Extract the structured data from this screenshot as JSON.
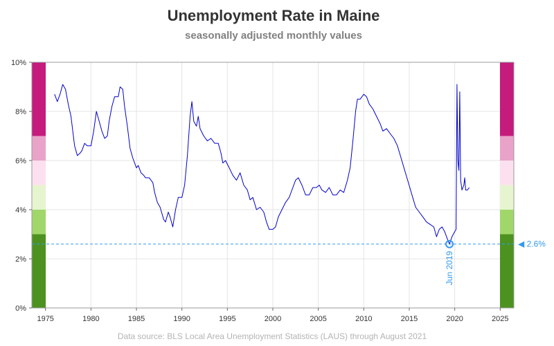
{
  "chart_data": {
    "type": "line",
    "title": "Unemployment Rate in Maine",
    "subtitle": "seasonally adjusted monthly values",
    "caption": "Data source: BLS Local Area Unemployment Statistics (LAUS) through August 2021",
    "xlim": [
      1973.5,
      2026.5
    ],
    "ylim": [
      0,
      10
    ],
    "x_ticks": [
      1975,
      1980,
      1985,
      1990,
      1995,
      2000,
      2005,
      2010,
      2015,
      2020,
      2025
    ],
    "x_tick_labels": [
      "1975",
      "1980",
      "1985",
      "1990",
      "1995",
      "2000",
      "2005",
      "2010",
      "2015",
      "2020",
      "2025"
    ],
    "y_ticks": [
      0,
      2,
      4,
      6,
      8,
      10
    ],
    "y_tick_labels": [
      "0%",
      "2%",
      "4%",
      "6%",
      "8%",
      "10%"
    ],
    "grid": true,
    "line_color": "#0000cc",
    "series": [
      {
        "points": [
          [
            1976.0,
            8.7
          ],
          [
            1976.3,
            8.4
          ],
          [
            1976.6,
            8.7
          ],
          [
            1976.9,
            9.1
          ],
          [
            1977.2,
            8.9
          ],
          [
            1977.5,
            8.3
          ],
          [
            1977.8,
            7.8
          ],
          [
            1978.0,
            7.2
          ],
          [
            1978.2,
            6.6
          ],
          [
            1978.5,
            6.2
          ],
          [
            1978.8,
            6.3
          ],
          [
            1979.0,
            6.4
          ],
          [
            1979.3,
            6.7
          ],
          [
            1979.6,
            6.6
          ],
          [
            1980.0,
            6.6
          ],
          [
            1980.3,
            7.2
          ],
          [
            1980.6,
            8.0
          ],
          [
            1980.9,
            7.6
          ],
          [
            1981.2,
            7.2
          ],
          [
            1981.5,
            6.9
          ],
          [
            1981.8,
            7.0
          ],
          [
            1982.0,
            7.6
          ],
          [
            1982.3,
            8.2
          ],
          [
            1982.6,
            8.6
          ],
          [
            1983.0,
            8.6
          ],
          [
            1983.2,
            9.0
          ],
          [
            1983.5,
            8.9
          ],
          [
            1983.7,
            8.2
          ],
          [
            1984.0,
            7.4
          ],
          [
            1984.3,
            6.5
          ],
          [
            1984.6,
            6.1
          ],
          [
            1985.0,
            5.7
          ],
          [
            1985.2,
            5.8
          ],
          [
            1985.5,
            5.5
          ],
          [
            1985.8,
            5.4
          ],
          [
            1986.0,
            5.3
          ],
          [
            1986.4,
            5.3
          ],
          [
            1986.8,
            5.1
          ],
          [
            1987.0,
            4.7
          ],
          [
            1987.3,
            4.3
          ],
          [
            1987.6,
            4.1
          ],
          [
            1988.0,
            3.6
          ],
          [
            1988.2,
            3.5
          ],
          [
            1988.5,
            3.9
          ],
          [
            1988.7,
            3.7
          ],
          [
            1989.0,
            3.3
          ],
          [
            1989.3,
            4.0
          ],
          [
            1989.6,
            4.5
          ],
          [
            1990.0,
            4.5
          ],
          [
            1990.3,
            5.0
          ],
          [
            1990.6,
            6.2
          ],
          [
            1990.9,
            7.8
          ],
          [
            1991.1,
            8.4
          ],
          [
            1991.3,
            7.6
          ],
          [
            1991.6,
            7.4
          ],
          [
            1991.8,
            7.8
          ],
          [
            1992.0,
            7.3
          ],
          [
            1992.4,
            7.0
          ],
          [
            1992.8,
            6.8
          ],
          [
            1993.2,
            6.9
          ],
          [
            1993.6,
            6.7
          ],
          [
            1994.0,
            6.7
          ],
          [
            1994.3,
            6.3
          ],
          [
            1994.5,
            5.9
          ],
          [
            1994.8,
            6.0
          ],
          [
            1995.2,
            5.7
          ],
          [
            1995.6,
            5.4
          ],
          [
            1996.0,
            5.2
          ],
          [
            1996.4,
            5.5
          ],
          [
            1996.8,
            5.0
          ],
          [
            1997.2,
            4.8
          ],
          [
            1997.5,
            4.4
          ],
          [
            1997.8,
            4.5
          ],
          [
            1998.2,
            4.0
          ],
          [
            1998.6,
            4.1
          ],
          [
            1999.0,
            3.9
          ],
          [
            1999.3,
            3.5
          ],
          [
            1999.6,
            3.2
          ],
          [
            2000.0,
            3.2
          ],
          [
            2000.3,
            3.3
          ],
          [
            2000.6,
            3.7
          ],
          [
            2001.0,
            4.0
          ],
          [
            2001.4,
            4.3
          ],
          [
            2001.8,
            4.5
          ],
          [
            2002.2,
            4.9
          ],
          [
            2002.5,
            5.2
          ],
          [
            2002.8,
            5.3
          ],
          [
            2003.2,
            5.0
          ],
          [
            2003.6,
            4.6
          ],
          [
            2004.0,
            4.6
          ],
          [
            2004.4,
            4.9
          ],
          [
            2004.8,
            4.9
          ],
          [
            2005.1,
            5.0
          ],
          [
            2005.4,
            4.8
          ],
          [
            2005.8,
            4.7
          ],
          [
            2006.2,
            4.9
          ],
          [
            2006.6,
            4.6
          ],
          [
            2007.0,
            4.6
          ],
          [
            2007.4,
            4.8
          ],
          [
            2007.8,
            4.7
          ],
          [
            2008.2,
            5.2
          ],
          [
            2008.5,
            5.7
          ],
          [
            2008.8,
            6.8
          ],
          [
            2009.1,
            8.0
          ],
          [
            2009.3,
            8.5
          ],
          [
            2009.6,
            8.5
          ],
          [
            2010.0,
            8.7
          ],
          [
            2010.3,
            8.6
          ],
          [
            2010.6,
            8.3
          ],
          [
            2011.0,
            8.1
          ],
          [
            2011.4,
            7.8
          ],
          [
            2011.8,
            7.5
          ],
          [
            2012.1,
            7.2
          ],
          [
            2012.5,
            7.3
          ],
          [
            2012.9,
            7.1
          ],
          [
            2013.3,
            6.9
          ],
          [
            2013.7,
            6.6
          ],
          [
            2014.1,
            6.1
          ],
          [
            2014.5,
            5.6
          ],
          [
            2014.9,
            5.1
          ],
          [
            2015.3,
            4.6
          ],
          [
            2015.7,
            4.1
          ],
          [
            2016.1,
            3.9
          ],
          [
            2016.5,
            3.7
          ],
          [
            2016.9,
            3.5
          ],
          [
            2017.3,
            3.4
          ],
          [
            2017.7,
            3.3
          ],
          [
            2018.0,
            2.9
          ],
          [
            2018.3,
            3.2
          ],
          [
            2018.6,
            3.3
          ],
          [
            2018.9,
            3.1
          ],
          [
            2019.2,
            2.8
          ],
          [
            2019.42,
            2.6
          ],
          [
            2019.7,
            2.9
          ],
          [
            2020.0,
            3.1
          ],
          [
            2020.15,
            3.2
          ],
          [
            2020.25,
            9.1
          ],
          [
            2020.35,
            6.0
          ],
          [
            2020.45,
            5.6
          ],
          [
            2020.55,
            8.8
          ],
          [
            2020.65,
            5.2
          ],
          [
            2020.8,
            4.8
          ],
          [
            2021.0,
            5.0
          ],
          [
            2021.1,
            5.3
          ],
          [
            2021.2,
            4.8
          ],
          [
            2021.4,
            4.8
          ],
          [
            2021.6,
            4.9
          ]
        ]
      }
    ],
    "bands": [
      {
        "from": 0,
        "to": 3,
        "color": "#4d9221"
      },
      {
        "from": 3,
        "to": 4,
        "color": "#a1d76a"
      },
      {
        "from": 4,
        "to": 5,
        "color": "#e6f5d0"
      },
      {
        "from": 5,
        "to": 6,
        "color": "#fde0ef"
      },
      {
        "from": 6,
        "to": 7,
        "color": "#e9a3c9"
      },
      {
        "from": 7,
        "to": 10,
        "color": "#c51b7d"
      }
    ],
    "annotation": {
      "x": 2019.42,
      "y": 2.6,
      "date_label": "Jun 2019",
      "value_label": "◀ 2.6%",
      "color": "#3399ee"
    }
  }
}
